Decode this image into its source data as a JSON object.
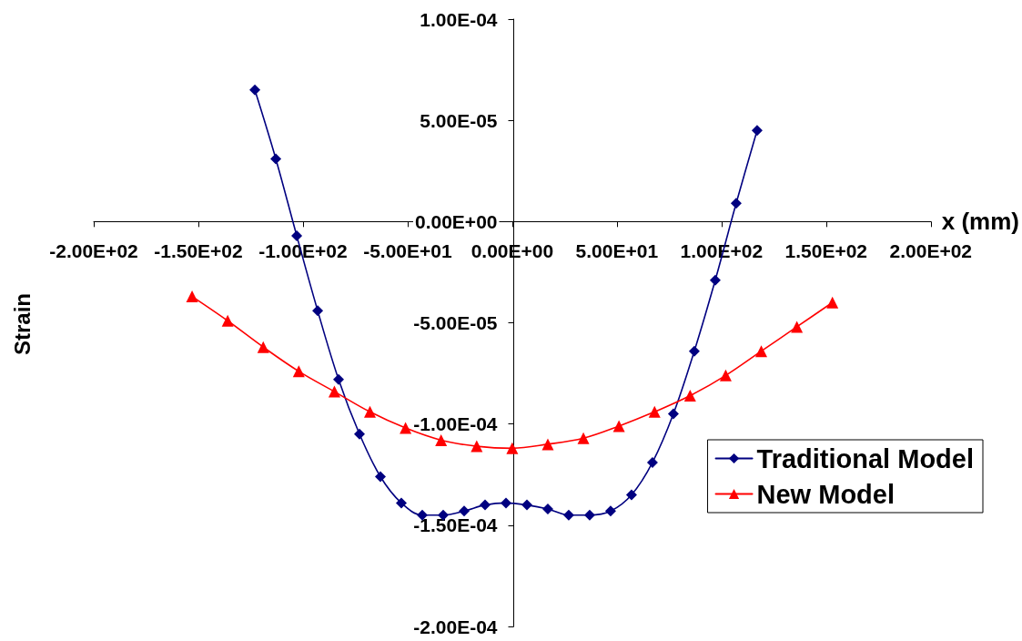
{
  "chart_data": {
    "type": "line",
    "xlabel": "x (mm)",
    "ylabel": "Strain",
    "xlim": [
      -200,
      200
    ],
    "xticks": [
      {
        "value": -200,
        "label": "-2.00E+02"
      },
      {
        "value": -150,
        "label": "-1.50E+02"
      },
      {
        "value": -100,
        "label": "-1.00E+02"
      },
      {
        "value": -50,
        "label": "-5.00E+01"
      },
      {
        "value": 0,
        "label": "0.00E+00"
      },
      {
        "value": 50,
        "label": "5.00E+01"
      },
      {
        "value": 100,
        "label": "1.00E+02"
      },
      {
        "value": 150,
        "label": "1.50E+02"
      },
      {
        "value": 200,
        "label": "2.00E+02"
      }
    ],
    "ylim": [
      -0.0002,
      0.0001
    ],
    "yticks": [
      {
        "value": -0.0002,
        "label": "-2.00E-04"
      },
      {
        "value": -0.00015,
        "label": "-1.50E-04"
      },
      {
        "value": -0.0001,
        "label": "-1.00E-04"
      },
      {
        "value": -5e-05,
        "label": "-5.00E-05"
      },
      {
        "value": 0,
        "label": "0.00E+00"
      },
      {
        "value": 5e-05,
        "label": "5.00E-05"
      },
      {
        "value": 0.0001,
        "label": "1.00E-04"
      }
    ],
    "legend": "bottom right",
    "line_style": "solid",
    "series": [
      {
        "name": "Traditional Model",
        "color": "#000080",
        "marker": "diamond",
        "x": [
          -123,
          -113,
          -103,
          -93,
          -83,
          -73,
          -63,
          -53,
          -43,
          -33,
          -23,
          -13,
          -3,
          7,
          17,
          27,
          37,
          47,
          57,
          67,
          77,
          87,
          97,
          107,
          117
        ],
        "values": [
          6.5e-05,
          3.1e-05,
          -7e-06,
          -4.4e-05,
          -7.8e-05,
          -0.000105,
          -0.000126,
          -0.000139,
          -0.000145,
          -0.000145,
          -0.000143,
          -0.00014,
          -0.000139,
          -0.00014,
          -0.000142,
          -0.000145,
          -0.000145,
          -0.000143,
          -0.000135,
          -0.000119,
          -9.5e-05,
          -6.4e-05,
          -2.9e-05,
          9e-06,
          4.5e-05
        ]
      },
      {
        "name": "New Model",
        "color": "#ff0000",
        "marker": "triangle",
        "x": [
          -153,
          -136,
          -119,
          -102,
          -85,
          -68,
          -51,
          -34,
          -17,
          0,
          17,
          34,
          51,
          68,
          85,
          102,
          119,
          136,
          153
        ],
        "values": [
          -3.7e-05,
          -4.9e-05,
          -6.2e-05,
          -7.4e-05,
          -8.4e-05,
          -9.4e-05,
          -0.000102,
          -0.000108,
          -0.000111,
          -0.000112,
          -0.00011,
          -0.000107,
          -0.000101,
          -9.4e-05,
          -8.6e-05,
          -7.6e-05,
          -6.4e-05,
          -5.2e-05,
          -4e-05
        ]
      }
    ]
  }
}
